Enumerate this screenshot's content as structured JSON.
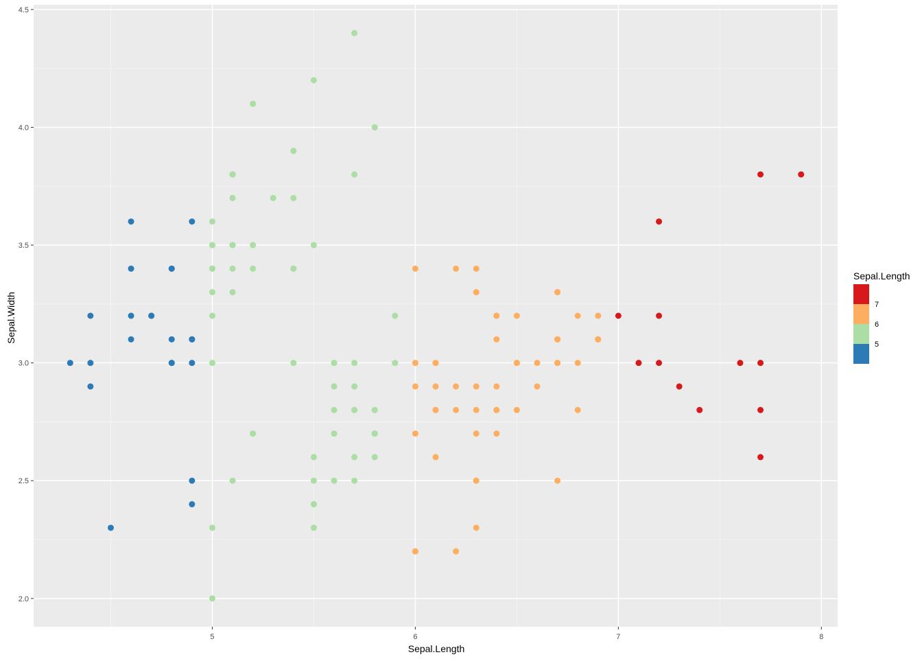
{
  "chart_data": {
    "type": "scatter",
    "title": "",
    "xlabel": "Sepal.Length",
    "ylabel": "Sepal.Width",
    "xlim": [
      4.12,
      8.08
    ],
    "ylim": [
      1.88,
      4.52
    ],
    "x_ticks": [
      5,
      6,
      7,
      8
    ],
    "x_tick_labels": [
      "5",
      "6",
      "7",
      "8"
    ],
    "y_ticks": [
      2.0,
      2.5,
      3.0,
      3.5,
      4.0,
      4.5
    ],
    "y_tick_labels": [
      "2.0",
      "2.5",
      "3.0",
      "3.5",
      "4.0",
      "4.5"
    ],
    "grid": true,
    "background": "#ebebeb",
    "color_scale": {
      "variable": "Sepal.Length",
      "type": "binned",
      "bins": [
        {
          "min": 4.3,
          "max": 5,
          "color": "#2c7bb6"
        },
        {
          "min": 5,
          "max": 6,
          "color": "#abdda4"
        },
        {
          "min": 6,
          "max": 7,
          "color": "#fdae61"
        },
        {
          "min": 7,
          "max": 7.9,
          "color": "#d7191c"
        }
      ]
    },
    "legend": {
      "title": "Sepal.Length",
      "placement": "right",
      "labels": [
        "7",
        "6",
        "5"
      ]
    },
    "points": [
      [
        5.1,
        3.5
      ],
      [
        4.9,
        3.0
      ],
      [
        4.7,
        3.2
      ],
      [
        4.6,
        3.1
      ],
      [
        5.0,
        3.6
      ],
      [
        5.4,
        3.9
      ],
      [
        4.6,
        3.4
      ],
      [
        5.0,
        3.4
      ],
      [
        4.4,
        2.9
      ],
      [
        4.9,
        3.1
      ],
      [
        5.4,
        3.7
      ],
      [
        4.8,
        3.4
      ],
      [
        4.8,
        3.0
      ],
      [
        4.3,
        3.0
      ],
      [
        5.8,
        4.0
      ],
      [
        5.7,
        4.4
      ],
      [
        5.4,
        3.9
      ],
      [
        5.1,
        3.5
      ],
      [
        5.7,
        3.8
      ],
      [
        5.1,
        3.8
      ],
      [
        5.4,
        3.4
      ],
      [
        5.1,
        3.7
      ],
      [
        4.6,
        3.6
      ],
      [
        5.1,
        3.3
      ],
      [
        4.8,
        3.4
      ],
      [
        5.0,
        3.0
      ],
      [
        5.0,
        3.4
      ],
      [
        5.2,
        3.5
      ],
      [
        5.2,
        3.4
      ],
      [
        4.7,
        3.2
      ],
      [
        4.8,
        3.1
      ],
      [
        5.4,
        3.4
      ],
      [
        5.2,
        4.1
      ],
      [
        5.5,
        4.2
      ],
      [
        4.9,
        3.1
      ],
      [
        5.0,
        3.2
      ],
      [
        5.5,
        3.5
      ],
      [
        4.9,
        3.6
      ],
      [
        4.4,
        3.0
      ],
      [
        5.1,
        3.4
      ],
      [
        5.0,
        3.5
      ],
      [
        4.5,
        2.3
      ],
      [
        4.4,
        3.2
      ],
      [
        5.0,
        3.5
      ],
      [
        5.1,
        3.8
      ],
      [
        4.8,
        3.0
      ],
      [
        5.1,
        3.8
      ],
      [
        4.6,
        3.2
      ],
      [
        5.3,
        3.7
      ],
      [
        5.0,
        3.3
      ],
      [
        7.0,
        3.2
      ],
      [
        6.4,
        3.2
      ],
      [
        6.9,
        3.1
      ],
      [
        5.5,
        2.3
      ],
      [
        6.5,
        2.8
      ],
      [
        5.7,
        2.8
      ],
      [
        6.3,
        3.3
      ],
      [
        4.9,
        2.4
      ],
      [
        6.6,
        2.9
      ],
      [
        5.2,
        2.7
      ],
      [
        5.0,
        2.0
      ],
      [
        5.9,
        3.0
      ],
      [
        6.0,
        2.2
      ],
      [
        6.1,
        2.9
      ],
      [
        5.6,
        2.9
      ],
      [
        6.7,
        3.1
      ],
      [
        5.6,
        3.0
      ],
      [
        5.8,
        2.7
      ],
      [
        6.2,
        2.2
      ],
      [
        5.6,
        2.5
      ],
      [
        5.9,
        3.2
      ],
      [
        6.1,
        2.8
      ],
      [
        6.3,
        2.5
      ],
      [
        6.1,
        2.8
      ],
      [
        6.4,
        2.9
      ],
      [
        6.6,
        3.0
      ],
      [
        6.8,
        2.8
      ],
      [
        6.7,
        3.0
      ],
      [
        6.0,
        2.9
      ],
      [
        5.7,
        2.6
      ],
      [
        5.5,
        2.4
      ],
      [
        5.5,
        2.4
      ],
      [
        5.8,
        2.7
      ],
      [
        6.0,
        2.7
      ],
      [
        5.4,
        3.0
      ],
      [
        6.0,
        3.4
      ],
      [
        6.7,
        3.1
      ],
      [
        6.3,
        2.3
      ],
      [
        5.6,
        3.0
      ],
      [
        5.5,
        2.5
      ],
      [
        5.5,
        2.6
      ],
      [
        6.1,
        3.0
      ],
      [
        5.8,
        2.6
      ],
      [
        5.0,
        2.3
      ],
      [
        5.6,
        2.7
      ],
      [
        5.7,
        3.0
      ],
      [
        5.7,
        2.9
      ],
      [
        6.2,
        2.9
      ],
      [
        5.1,
        2.5
      ],
      [
        5.7,
        2.8
      ],
      [
        6.3,
        3.3
      ],
      [
        5.8,
        2.7
      ],
      [
        7.1,
        3.0
      ],
      [
        6.3,
        2.9
      ],
      [
        6.5,
        3.0
      ],
      [
        7.6,
        3.0
      ],
      [
        4.9,
        2.5
      ],
      [
        7.3,
        2.9
      ],
      [
        6.7,
        2.5
      ],
      [
        7.2,
        3.6
      ],
      [
        6.5,
        3.2
      ],
      [
        6.4,
        2.7
      ],
      [
        6.8,
        3.0
      ],
      [
        5.7,
        2.5
      ],
      [
        5.8,
        2.8
      ],
      [
        6.4,
        3.2
      ],
      [
        6.5,
        3.0
      ],
      [
        7.7,
        3.8
      ],
      [
        7.7,
        2.6
      ],
      [
        6.0,
        2.2
      ],
      [
        6.9,
        3.2
      ],
      [
        5.6,
        2.8
      ],
      [
        7.7,
        2.8
      ],
      [
        6.3,
        2.7
      ],
      [
        6.7,
        3.3
      ],
      [
        7.2,
        3.2
      ],
      [
        6.2,
        2.8
      ],
      [
        6.1,
        3.0
      ],
      [
        6.4,
        2.8
      ],
      [
        7.2,
        3.0
      ],
      [
        7.4,
        2.8
      ],
      [
        7.9,
        3.8
      ],
      [
        6.4,
        2.8
      ],
      [
        6.3,
        2.8
      ],
      [
        6.1,
        2.6
      ],
      [
        7.7,
        3.0
      ],
      [
        6.3,
        3.4
      ],
      [
        6.4,
        3.1
      ],
      [
        6.0,
        3.0
      ],
      [
        6.9,
        3.1
      ],
      [
        6.7,
        3.1
      ],
      [
        6.9,
        3.1
      ],
      [
        5.8,
        2.7
      ],
      [
        6.8,
        3.2
      ],
      [
        6.7,
        3.3
      ],
      [
        6.7,
        3.0
      ],
      [
        6.3,
        2.5
      ],
      [
        6.5,
        3.0
      ],
      [
        6.2,
        3.4
      ],
      [
        5.9,
        3.0
      ]
    ]
  }
}
